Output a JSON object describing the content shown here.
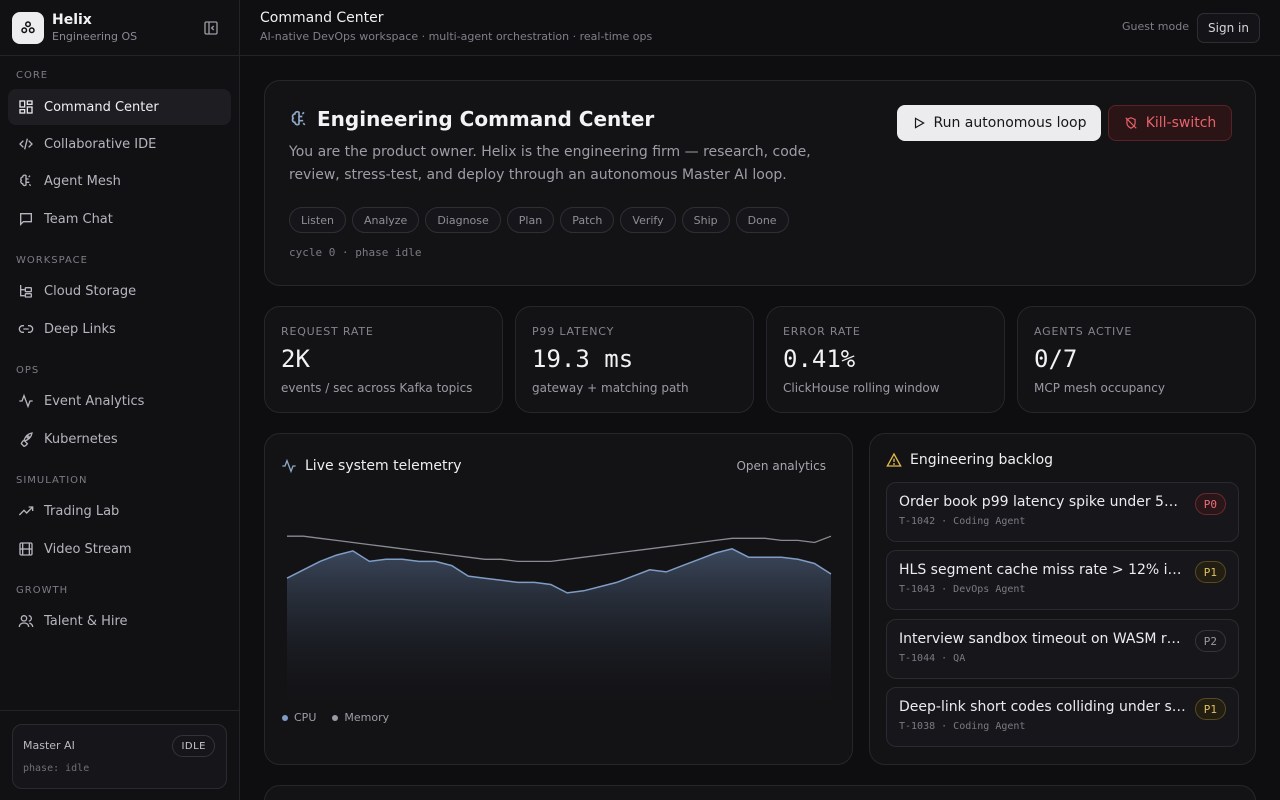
{
  "brand": {
    "name": "Helix",
    "subtitle": "Engineering OS"
  },
  "nav": {
    "sections": [
      {
        "label": "CORE",
        "items": [
          "Command Center",
          "Collaborative IDE",
          "Agent Mesh",
          "Team Chat"
        ]
      },
      {
        "label": "WORKSPACE",
        "items": [
          "Cloud Storage",
          "Deep Links"
        ]
      },
      {
        "label": "OPS",
        "items": [
          "Event Analytics",
          "Kubernetes"
        ]
      },
      {
        "label": "SIMULATION",
        "items": [
          "Trading Lab",
          "Video Stream"
        ]
      },
      {
        "label": "GROWTH",
        "items": [
          "Talent & Hire"
        ]
      }
    ],
    "active": "Command Center"
  },
  "master": {
    "title": "Master AI",
    "badge": "IDLE",
    "phase": "phase: idle"
  },
  "topbar": {
    "title": "Command Center",
    "subtitle": "AI-native DevOps workspace · multi-agent orchestration · real-time ops",
    "guest": "Guest mode",
    "signin": "Sign in"
  },
  "hero": {
    "title": "Engineering Command Center",
    "description": "You are the product owner. Helix is the engineering firm — research, code, review, stress-test, and deploy through an autonomous Master AI loop.",
    "run_label": "Run autonomous loop",
    "kill_label": "Kill-switch",
    "phases": [
      "Listen",
      "Analyze",
      "Diagnose",
      "Plan",
      "Patch",
      "Verify",
      "Ship",
      "Done"
    ],
    "cycle": "cycle 0 · phase idle"
  },
  "stats": [
    {
      "label": "REQUEST RATE",
      "value": "2K",
      "desc": "events / sec across Kafka topics"
    },
    {
      "label": "P99 LATENCY",
      "value": "19.3 ms",
      "desc": "gateway + matching path"
    },
    {
      "label": "ERROR RATE",
      "value": "0.41%",
      "desc": "ClickHouse rolling window"
    },
    {
      "label": "AGENTS ACTIVE",
      "value": "0/7",
      "desc": "MCP mesh occupancy"
    }
  ],
  "telemetry": {
    "title": "Live system telemetry",
    "open_label": "Open analytics",
    "legend": [
      {
        "name": "CPU",
        "color": "#7f9cc4"
      },
      {
        "name": "Memory",
        "color": "#9a9aa3"
      }
    ],
    "cpu": [
      58,
      62,
      66,
      69,
      71,
      66,
      67,
      67,
      66,
      66,
      64,
      59,
      58,
      57,
      56,
      56,
      55,
      51,
      52,
      54,
      56,
      59,
      62,
      61,
      64,
      67,
      70,
      72,
      68,
      68,
      68,
      67,
      65,
      60
    ],
    "memory": [
      78,
      78,
      77,
      76,
      75,
      74,
      73,
      72,
      71,
      70,
      69,
      68,
      67,
      67,
      66,
      66,
      66,
      67,
      68,
      69,
      70,
      71,
      72,
      73,
      74,
      75,
      76,
      77,
      77,
      77,
      76,
      76,
      75,
      78
    ],
    "ylim": [
      0,
      100
    ]
  },
  "backlog": {
    "title": "Engineering backlog",
    "tickets": [
      {
        "title": "Order book p99 latency spike under 5…",
        "meta": "T-1042 · Coding Agent",
        "priority": "P0"
      },
      {
        "title": "HLS segment cache miss rate > 12% i…",
        "meta": "T-1043 · DevOps Agent",
        "priority": "P1"
      },
      {
        "title": "Interview sandbox timeout on WASM r…",
        "meta": "T-1044 · QA",
        "priority": "P2"
      },
      {
        "title": "Deep-link short codes colliding under s…",
        "meta": "T-1038 · Coding Agent",
        "priority": "P1"
      }
    ]
  },
  "colors": {
    "accent": "#ececef",
    "danger": "#e8626a",
    "background": "#0e0e11"
  }
}
